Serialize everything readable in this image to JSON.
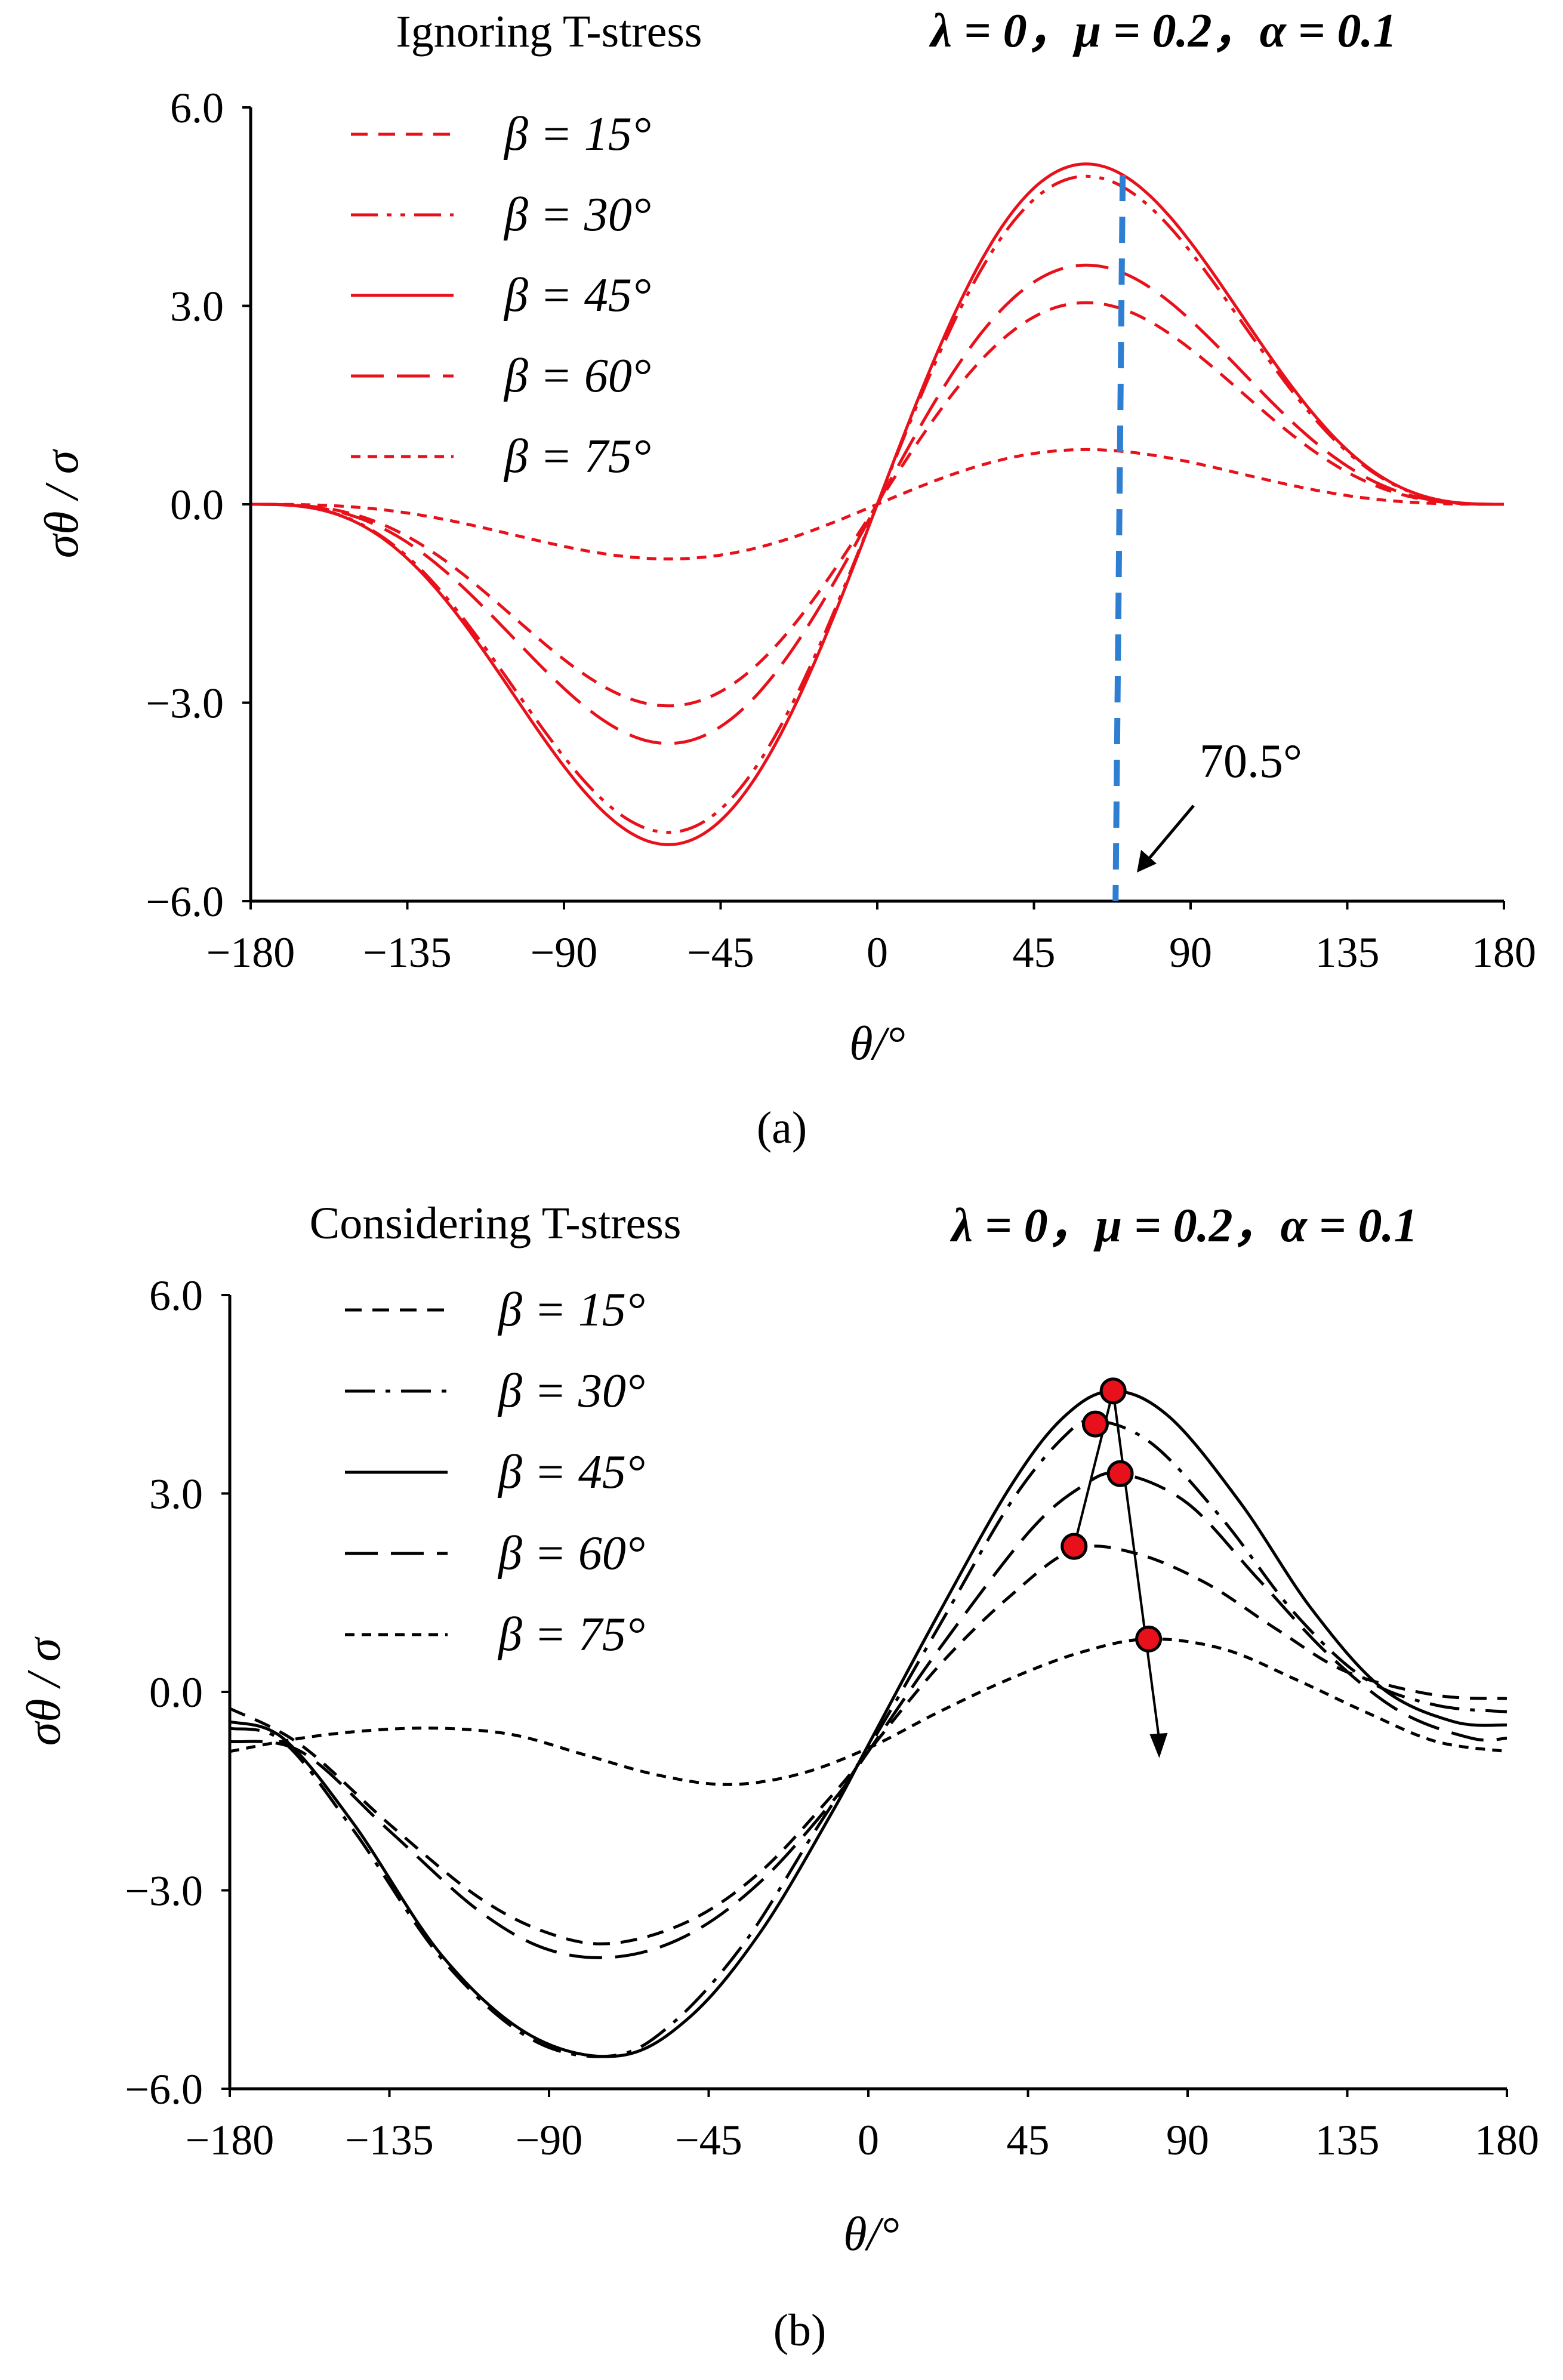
{
  "chart_data": [
    {
      "type": "line",
      "panel_label": "(a)",
      "title": "Ignoring T-stress",
      "params": "λ = 0，μ = 0.2，α = 0.1",
      "xlabel": "θ/°",
      "ylabel": "σθ / σ",
      "xlim": [
        -180,
        180
      ],
      "ylim": [
        -6,
        6
      ],
      "xticks": [
        "−180",
        "−135",
        "−90",
        "−45",
        "0",
        "45",
        "90",
        "135",
        "180"
      ],
      "yticks": [
        "6.0",
        "3.0",
        "0.0",
        "−3.0",
        "−6.0"
      ],
      "color": "#e8111b",
      "series": [
        {
          "name": "β = 15°",
          "dash": "dash",
          "amp": 2.95,
          "peak_theta": 70.5
        },
        {
          "name": "β = 30°",
          "dash": "dashdotdot",
          "amp": 4.8,
          "peak_theta": 70.5
        },
        {
          "name": "β = 45°",
          "dash": "solid",
          "amp": 4.98,
          "peak_theta": 70.5
        },
        {
          "name": "β = 60°",
          "dash": "longdash",
          "amp": 3.5,
          "peak_theta": 70.5
        },
        {
          "name": "β = 75°",
          "dash": "shortdash",
          "amp": 0.8,
          "peak_theta": 70.5
        }
      ],
      "marker_line": {
        "theta": 70.5,
        "color": "#2e7fd2",
        "label": "70.5°"
      }
    },
    {
      "type": "line",
      "panel_label": "(b)",
      "title": "Considering T-stress",
      "params": "λ = 0，μ = 0.2，α = 0.1",
      "xlabel": "θ/°",
      "ylabel": "σθ / σ",
      "xlim": [
        -180,
        180
      ],
      "ylim": [
        -6,
        6
      ],
      "xticks": [
        "−180",
        "−135",
        "−90",
        "−45",
        "0",
        "45",
        "90",
        "135",
        "180"
      ],
      "yticks": [
        "6.0",
        "3.0",
        "0.0",
        "−3.0",
        "−6.0"
      ],
      "color": "#000000",
      "series": [
        {
          "name": "β = 15°",
          "dash": "dash",
          "x": [
            -180,
            -160,
            -135,
            -110,
            -90,
            -72,
            -50,
            -30,
            -10,
            0,
            20,
            40,
            58,
            75,
            95,
            115,
            135,
            160,
            180
          ],
          "y": [
            -0.25,
            -0.8,
            -2.0,
            -3.1,
            -3.65,
            -3.8,
            -3.45,
            -2.7,
            -1.55,
            -0.9,
            0.4,
            1.45,
            2.15,
            2.1,
            1.65,
            0.95,
            0.3,
            -0.05,
            -0.1
          ]
        },
        {
          "name": "β = 30°",
          "dash": "dashdot",
          "x": [
            -180,
            -165,
            -145,
            -120,
            -95,
            -72,
            -55,
            -35,
            -15,
            0,
            20,
            40,
            55,
            64,
            80,
            100,
            120,
            140,
            160,
            180
          ],
          "y": [
            -0.55,
            -0.75,
            -2.1,
            -4.05,
            -5.25,
            -5.5,
            -5.0,
            -3.8,
            -2.1,
            -0.85,
            1.0,
            2.85,
            3.85,
            4.1,
            3.75,
            2.6,
            1.2,
            0.2,
            -0.2,
            -0.3
          ]
        },
        {
          "name": "β = 45°",
          "dash": "solid",
          "x": [
            -180,
            -165,
            -145,
            -120,
            -95,
            -70,
            -50,
            -30,
            -10,
            0,
            20,
            40,
            55,
            69,
            85,
            105,
            125,
            145,
            165,
            180
          ],
          "y": [
            -0.45,
            -0.7,
            -2.0,
            -4.0,
            -5.2,
            -5.5,
            -4.9,
            -3.6,
            -1.8,
            -0.8,
            1.2,
            3.1,
            4.15,
            4.55,
            4.15,
            2.85,
            1.25,
            0.05,
            -0.45,
            -0.5
          ]
        },
        {
          "name": "β = 60°",
          "dash": "longdash",
          "x": [
            -180,
            -160,
            -135,
            -110,
            -90,
            -70,
            -50,
            -30,
            -10,
            0,
            20,
            45,
            60,
            71,
            90,
            110,
            130,
            150,
            170,
            180
          ],
          "y": [
            -0.75,
            -0.9,
            -2.1,
            -3.3,
            -3.9,
            -4.0,
            -3.65,
            -2.85,
            -1.65,
            -0.9,
            0.65,
            2.4,
            3.1,
            3.3,
            2.85,
            1.7,
            0.55,
            -0.3,
            -0.7,
            -0.7
          ]
        },
        {
          "name": "β = 75°",
          "dash": "shortdash",
          "x": [
            -180,
            -160,
            -140,
            -120,
            -100,
            -80,
            -60,
            -40,
            -20,
            0,
            20,
            40,
            60,
            79,
            100,
            120,
            140,
            160,
            180
          ],
          "y": [
            -0.9,
            -0.7,
            -0.58,
            -0.55,
            -0.65,
            -0.95,
            -1.25,
            -1.4,
            -1.25,
            -0.85,
            -0.3,
            0.2,
            0.6,
            0.8,
            0.65,
            0.2,
            -0.3,
            -0.75,
            -0.9
          ]
        }
      ],
      "peak_points": [
        {
          "theta": 58,
          "value": 2.2
        },
        {
          "theta": 64,
          "value": 4.05
        },
        {
          "theta": 69,
          "value": 4.55
        },
        {
          "theta": 71,
          "value": 3.3
        },
        {
          "theta": 79,
          "value": 0.8
        }
      ],
      "arrow_to": {
        "theta": 82,
        "value": -1.0
      }
    }
  ]
}
